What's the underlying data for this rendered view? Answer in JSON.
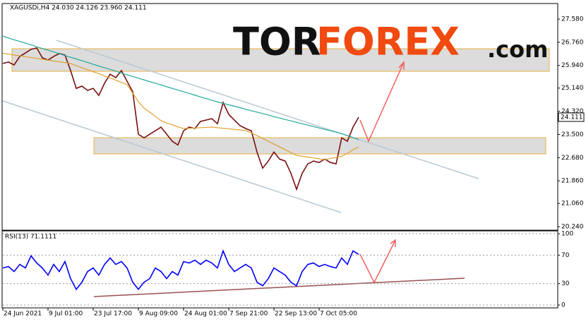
{
  "chart_data": [
    {
      "type": "line",
      "title": "XAGUSDi,H4  24.030 24.126 23.960 24.111",
      "categories": [
        "24 Jun 2021",
        null,
        null,
        null,
        null,
        null,
        null,
        null,
        "9 Jul 01:00",
        null,
        null,
        null,
        null,
        null,
        null,
        null,
        "23 Jul 17:00",
        null,
        null,
        null,
        null,
        null,
        null,
        null,
        "9 Aug 09:00",
        null,
        null,
        null,
        null,
        null,
        null,
        null,
        "24 Aug 01:00",
        null,
        null,
        null,
        null,
        null,
        null,
        null,
        "7 Sep 21:00",
        null,
        null,
        null,
        null,
        null,
        null,
        null,
        "22 Sep 13:00",
        null,
        null,
        null,
        null,
        null,
        null,
        null,
        "7 Oct 05:00",
        null,
        null,
        null,
        null,
        null,
        null,
        null
      ],
      "series": [
        {
          "color": "#7a1010",
          "values": [
            26.01,
            26.06,
            25.96,
            26.26,
            26.38,
            26.51,
            26.56,
            26.21,
            26.13,
            26.26,
            26.36,
            26.31,
            25.76,
            25.13,
            25.21,
            25.06,
            25.13,
            24.88,
            25.31,
            25.63,
            25.51,
            25.76,
            25.38,
            25.01,
            23.51,
            23.38,
            23.51,
            23.63,
            23.76,
            23.51,
            23.26,
            23.13,
            23.63,
            23.76,
            23.71,
            23.96,
            24.01,
            24.06,
            23.88,
            24.63,
            24.21,
            24.01,
            23.81,
            23.71,
            23.63,
            22.88,
            22.31,
            22.56,
            22.88,
            22.63,
            22.56,
            22.13,
            21.56,
            22.13,
            22.46,
            22.56,
            22.51,
            22.63,
            22.51,
            22.46,
            23.38,
            23.26,
            23.76,
            24.111
          ]
        },
        {
          "color": "#20a89a",
          "values": [
            26.98,
            26.91,
            26.85,
            26.79,
            26.73,
            26.67,
            26.6,
            26.54,
            26.48,
            26.42,
            26.36,
            26.29,
            26.23,
            26.17,
            26.11,
            26.05,
            25.98,
            25.92,
            25.86,
            25.8,
            25.74,
            25.67,
            25.61,
            25.55,
            25.49,
            25.43,
            25.37,
            25.31,
            25.25,
            25.19,
            25.13,
            25.07,
            25.01,
            24.95,
            24.89,
            24.83,
            24.77,
            24.71,
            24.65,
            24.6,
            24.55,
            24.5,
            24.45,
            24.39,
            24.34,
            24.29,
            24.24,
            24.19,
            24.13,
            24.08,
            24.03,
            23.98,
            23.93,
            23.88,
            23.83,
            23.78,
            23.73,
            23.68,
            23.63,
            23.58,
            23.53,
            23.46,
            23.39,
            23.32
          ]
        },
        {
          "color": "#e0a030",
          "values": [
            26.37,
            26.34,
            26.31,
            26.28,
            26.25,
            26.22,
            26.19,
            26.16,
            26.13,
            26.1,
            26.07,
            26.04,
            26.01,
            25.93,
            25.86,
            25.79,
            25.72,
            25.65,
            25.57,
            25.5,
            25.42,
            25.34,
            25.26,
            24.96,
            24.66,
            24.43,
            24.29,
            24.14,
            23.99,
            23.91,
            23.84,
            23.77,
            23.71,
            23.72,
            23.73,
            23.74,
            23.75,
            23.76,
            23.74,
            23.72,
            23.7,
            23.68,
            23.66,
            23.64,
            23.56,
            23.46,
            23.36,
            23.26,
            23.16,
            23.06,
            22.96,
            22.86,
            22.76,
            22.73,
            22.7,
            22.67,
            22.64,
            22.61,
            22.65,
            22.69,
            22.73,
            22.83,
            22.96,
            23.06
          ]
        }
      ],
      "ylim": [
        20.115,
        28.13
      ],
      "yticks": [
        {
          "value": 27.58,
          "label": "27.580"
        },
        {
          "value": 26.76,
          "label": "26.760"
        },
        {
          "value": 25.94,
          "label": "25.940"
        },
        {
          "value": 25.14,
          "label": "25.140"
        },
        {
          "value": 24.32,
          "label": "24.320"
        },
        {
          "value": 23.5,
          "label": "23.500"
        },
        {
          "value": 22.68,
          "label": "22.680"
        },
        {
          "value": 21.86,
          "label": "21.860"
        },
        {
          "value": 21.06,
          "label": "21.060"
        },
        {
          "value": 20.24,
          "label": "20.240"
        }
      ],
      "grid": false
    },
    {
      "type": "line",
      "title": "RSI(13) 71.1111",
      "series": [
        {
          "color": "#0000ff",
          "values": [
            52,
            54,
            47,
            57,
            52,
            69,
            59,
            52,
            42,
            57,
            47,
            61,
            37,
            22,
            32,
            47,
            52,
            42,
            57,
            66,
            57,
            61,
            52,
            32,
            22,
            32,
            37,
            52,
            47,
            37,
            47,
            42,
            61,
            59,
            63,
            57,
            63,
            59,
            52,
            76,
            57,
            47,
            52,
            57,
            52,
            32,
            27,
            37,
            52,
            47,
            42,
            32,
            27,
            47,
            57,
            59,
            54,
            57,
            54,
            52,
            66,
            57,
            76,
            71.11
          ]
        }
      ],
      "ylim": [
        -4,
        104
      ],
      "yticks": [
        0,
        30,
        70,
        100
      ],
      "grid": true
    }
  ],
  "watermark": {
    "part1": "TOR",
    "part2": "FOREX",
    "part3": ".com"
  }
}
